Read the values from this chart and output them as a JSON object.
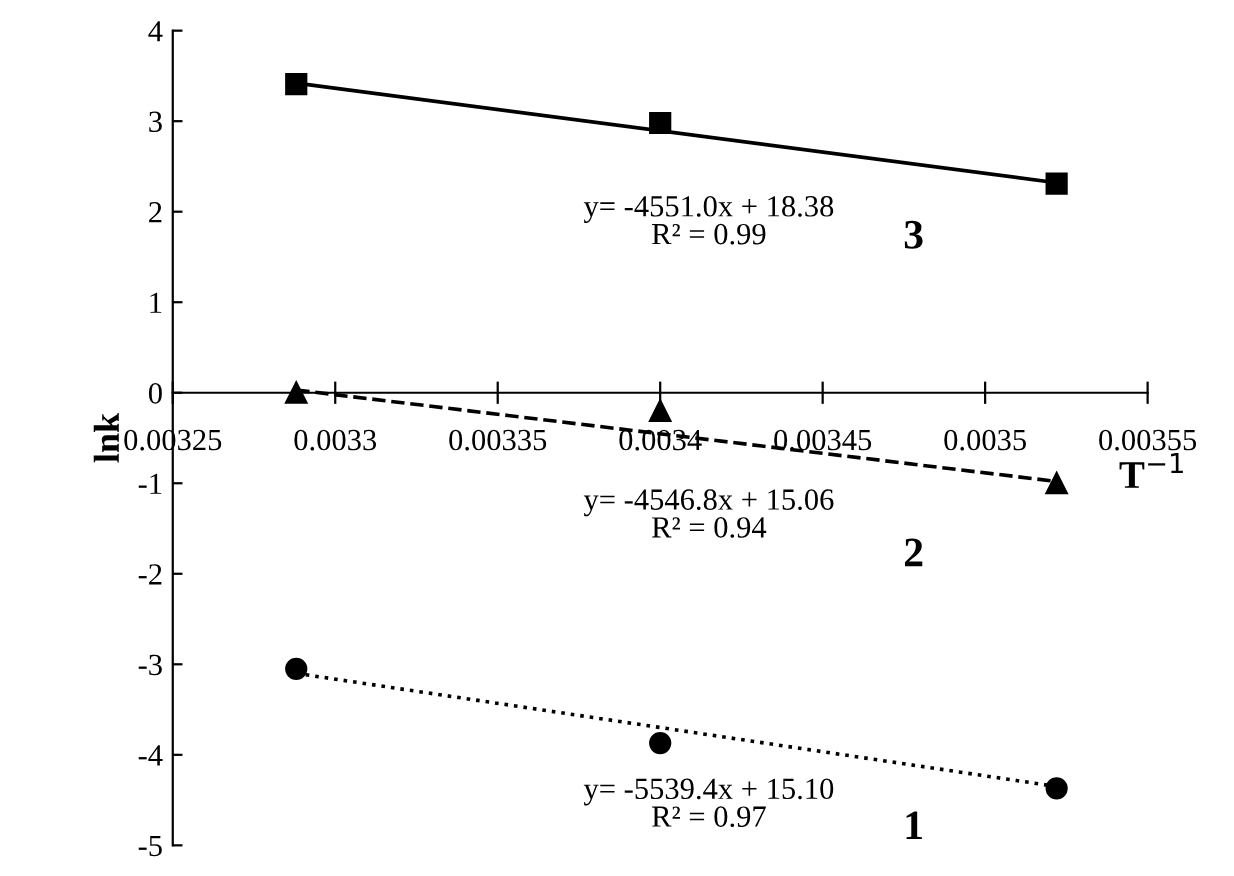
{
  "chart_data": {
    "type": "scatter",
    "xlabel": "T$^{−1}$",
    "ylabel": "lnk",
    "xlim": [
      0.00325,
      0.00355
    ],
    "xticks": [
      0.00325,
      0.0033,
      0.00335,
      0.0034,
      0.00345,
      0.0035,
      0.00355
    ],
    "ylim": [
      -5,
      4
    ],
    "yticks": [
      -5,
      -4,
      -3,
      -2,
      -1,
      0,
      1,
      2,
      3,
      4
    ],
    "grid": false,
    "legend": false,
    "series": [
      {
        "marker": "square",
        "color": "#000000",
        "x": [
          0.003288,
          0.0034,
          0.003522
        ],
        "values": [
          3.41,
          2.98,
          2.31
        ]
      },
      {
        "type": "line",
        "marker": "none",
        "line_style": "solid",
        "color": "#000000",
        "x": [
          0.003288,
          0.003522
        ],
        "values": [
          3.42,
          2.32
        ]
      },
      {
        "marker": "triangle",
        "color": "#000000",
        "x": [
          0.003288,
          0.0034,
          0.003522
        ],
        "values": [
          0.0,
          -0.2,
          -1.0
        ]
      },
      {
        "type": "line",
        "marker": "none",
        "line_style": "dashed",
        "color": "#000000",
        "x": [
          0.003288,
          0.003522
        ],
        "values": [
          0.03,
          -0.98
        ]
      },
      {
        "marker": "circle",
        "color": "#000000",
        "x": [
          0.003288,
          0.0034,
          0.003522
        ],
        "values": [
          -3.05,
          -3.87,
          -4.37
        ]
      },
      {
        "type": "line",
        "marker": "none",
        "line_style": "dotted",
        "color": "#000000",
        "x": [
          0.003288,
          0.003522
        ],
        "values": [
          -3.1,
          -4.35
        ]
      }
    ],
    "annotations": [
      "y= -4551.0x + 18.38\nR² = 0.99",
      "3",
      "y= -4546.8x + 15.06\nR² = 0.94",
      "2",
      "y= -5539.4x + 15.10\nR² = 0.97",
      "1"
    ]
  }
}
